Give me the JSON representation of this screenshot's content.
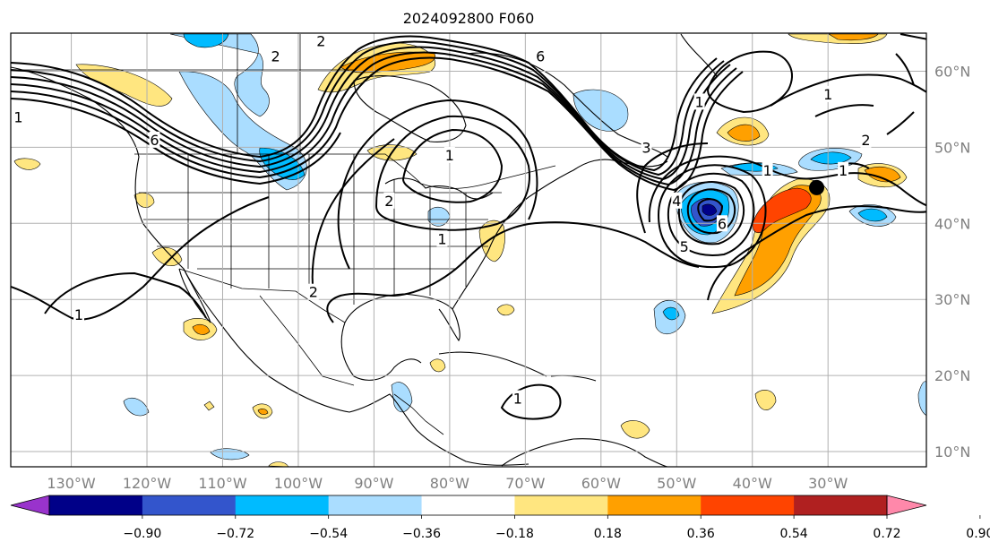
{
  "title": "2024092800 F060",
  "x_ticks": [
    {
      "label": "130°W",
      "lon": -130
    },
    {
      "label": "120°W",
      "lon": -120
    },
    {
      "label": "110°W",
      "lon": -110
    },
    {
      "label": "100°W",
      "lon": -100
    },
    {
      "label": "90°W",
      "lon": -90
    },
    {
      "label": "80°W",
      "lon": -80
    },
    {
      "label": "70°W",
      "lon": -70
    },
    {
      "label": "60°W",
      "lon": -60
    },
    {
      "label": "50°W",
      "lon": -50
    },
    {
      "label": "40°W",
      "lon": -40
    },
    {
      "label": "30°W",
      "lon": -30
    }
  ],
  "y_ticks": [
    {
      "label": "60°N",
      "lat": 60
    },
    {
      "label": "50°N",
      "lat": 50
    },
    {
      "label": "40°N",
      "lat": 40
    },
    {
      "label": "30°N",
      "lat": 30
    },
    {
      "label": "20°N",
      "lat": 20
    },
    {
      "label": "10°N",
      "lat": 10
    }
  ],
  "extent": {
    "lon_min": -138,
    "lon_max": -17,
    "lat_min": 8,
    "lat_max": 65
  },
  "colorbar": {
    "labels": [
      "−0.90",
      "−0.72",
      "−0.54",
      "−0.36",
      "−0.18",
      "0.18",
      "0.36",
      "0.54",
      "0.72",
      "0.90"
    ],
    "colors": [
      "#9933cc",
      "#000088",
      "#3355cc",
      "#00bbff",
      "#aaddff",
      "#ffffff",
      "#ffe680",
      "#ffa000",
      "#ff4400",
      "#b02020",
      "#ff88aa"
    ],
    "extend": "both"
  },
  "contour_labels": [
    {
      "text": "1",
      "lon": -137,
      "lat": 54
    },
    {
      "text": "6",
      "lon": -119,
      "lat": 51
    },
    {
      "text": "2",
      "lon": -103,
      "lat": 62
    },
    {
      "text": "2",
      "lon": -97,
      "lat": 64
    },
    {
      "text": "6",
      "lon": -68,
      "lat": 62
    },
    {
      "text": "1",
      "lon": -80,
      "lat": 49
    },
    {
      "text": "2",
      "lon": -88,
      "lat": 43
    },
    {
      "text": "1",
      "lon": -81,
      "lat": 38
    },
    {
      "text": "2",
      "lon": -98,
      "lat": 31
    },
    {
      "text": "1",
      "lon": -129,
      "lat": 28
    },
    {
      "text": "1",
      "lon": -71,
      "lat": 17
    },
    {
      "text": "4",
      "lon": -50,
      "lat": 43
    },
    {
      "text": "5",
      "lon": -49,
      "lat": 37
    },
    {
      "text": "6",
      "lon": -44,
      "lat": 40
    },
    {
      "text": "1",
      "lon": -38,
      "lat": 47
    },
    {
      "text": "1",
      "lon": -47,
      "lat": 56
    },
    {
      "text": "1",
      "lon": -30,
      "lat": 57
    },
    {
      "text": "2",
      "lon": -25,
      "lat": 51
    },
    {
      "text": "1",
      "lon": -28,
      "lat": 47
    },
    {
      "text": "3",
      "lon": -54,
      "lat": 50
    }
  ],
  "marker": {
    "lon": -31.5,
    "lat": 44.7
  }
}
